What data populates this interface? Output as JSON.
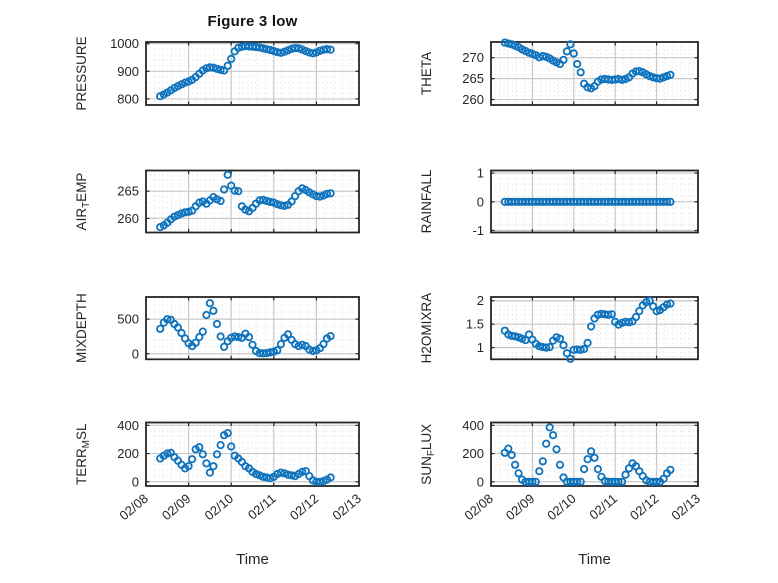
{
  "figure": {
    "title": "Figure 3 low",
    "xlabel": "Time",
    "background": "#ffffff",
    "marker_color": "#0e72bd",
    "axis_color": "#262626",
    "grid_color": "#c9c9c9",
    "minor_grid_color": "#dedede",
    "tick_label_color": "#262626"
  },
  "x_axis": {
    "tick_values": [
      0,
      1,
      2,
      3,
      4,
      5
    ],
    "tick_labels": [
      "02/08",
      "02/09",
      "02/10",
      "02/11",
      "02/12",
      "02/13"
    ]
  },
  "x_days": [
    0.333,
    0.417,
    0.5,
    0.583,
    0.667,
    0.75,
    0.833,
    0.917,
    1.0,
    1.083,
    1.167,
    1.25,
    1.333,
    1.417,
    1.5,
    1.583,
    1.667,
    1.75,
    1.833,
    1.917,
    2.0,
    2.083,
    2.167,
    2.25,
    2.333,
    2.417,
    2.5,
    2.583,
    2.667,
    2.75,
    2.833,
    2.917,
    3.0,
    3.083,
    3.167,
    3.25,
    3.333,
    3.417,
    3.5,
    3.583,
    3.667,
    3.75,
    3.833,
    3.917,
    4.0,
    4.083,
    4.167,
    4.25,
    4.333
  ],
  "chart_data": [
    {
      "type": "scatter",
      "name": "PRESSURE",
      "ylabel": "PRESSURE",
      "ylabel_parts": [
        {
          "t": "PRESSURE"
        }
      ],
      "row": 0,
      "col": 0,
      "xlim": [
        0,
        5
      ],
      "ylim": [
        778,
        1006
      ],
      "yticks": {
        "values": [
          800,
          900,
          1000
        ],
        "labels": [
          "800",
          "900",
          "1000"
        ]
      },
      "values": [
        810,
        816,
        823,
        831,
        839,
        846,
        853,
        859,
        863,
        869,
        879,
        891,
        903,
        911,
        914,
        913,
        909,
        905,
        903,
        920,
        945,
        972,
        985,
        989,
        991,
        990,
        989,
        988,
        986,
        983,
        980,
        977,
        973,
        969,
        967,
        971,
        976,
        981,
        984,
        983,
        979,
        973,
        968,
        965,
        968,
        974,
        978,
        980,
        978
      ]
    },
    {
      "type": "scatter",
      "name": "THETA",
      "ylabel": "THETA",
      "ylabel_parts": [
        {
          "t": "THETA"
        }
      ],
      "row": 0,
      "col": 1,
      "xlim": [
        0,
        5
      ],
      "ylim": [
        258.7,
        273.75
      ],
      "yticks": {
        "values": [
          260,
          265,
          270
        ],
        "labels": [
          "260",
          "265",
          "270"
        ]
      },
      "values": [
        273.6,
        273.4,
        273.2,
        272.9,
        272.5,
        272.0,
        271.6,
        271.2,
        270.9,
        270.6,
        270.1,
        270.4,
        270.2,
        269.8,
        269.3,
        268.9,
        268.5,
        269.5,
        271.5,
        273.2,
        271.0,
        268.5,
        266.5,
        263.8,
        262.9,
        262.7,
        263.2,
        264.3,
        264.8,
        264.9,
        264.8,
        264.7,
        264.8,
        264.9,
        264.7,
        264.9,
        265.3,
        266.2,
        266.7,
        266.8,
        266.5,
        266.0,
        265.6,
        265.3,
        265.1,
        265.0,
        265.3,
        265.6,
        265.9
      ]
    },
    {
      "type": "scatter",
      "name": "AIR_TEMP",
      "ylabel": "AIR_TEMP",
      "ylabel_parts": [
        {
          "t": "AIR"
        },
        {
          "t": "T",
          "sub": true
        },
        {
          "t": "EMP"
        }
      ],
      "row": 1,
      "col": 0,
      "xlim": [
        0,
        5
      ],
      "ylim": [
        257.4,
        268.8
      ],
      "yticks": {
        "values": [
          260,
          265
        ],
        "labels": [
          "260",
          "265"
        ]
      },
      "values": [
        258.4,
        258.7,
        259.2,
        259.8,
        260.3,
        260.6,
        260.9,
        261.1,
        261.2,
        261.4,
        262.2,
        262.9,
        263.1,
        262.7,
        263.3,
        263.9,
        263.5,
        263.2,
        265.3,
        268.0,
        266.0,
        265.1,
        265.0,
        262.2,
        261.6,
        261.3,
        261.9,
        262.7,
        263.3,
        263.4,
        263.2,
        263.0,
        262.9,
        262.6,
        262.4,
        262.3,
        262.5,
        263.1,
        264.1,
        265.0,
        265.5,
        265.2,
        264.8,
        264.4,
        264.1,
        264.0,
        264.2,
        264.5,
        264.6
      ]
    },
    {
      "type": "scatter",
      "name": "RAINFALL",
      "ylabel": "RAINFALL",
      "ylabel_parts": [
        {
          "t": "RAINFALL"
        }
      ],
      "row": 1,
      "col": 1,
      "xlim": [
        0,
        5
      ],
      "ylim": [
        -1.07,
        1.09
      ],
      "yticks": {
        "values": [
          -1,
          0,
          1
        ],
        "labels": [
          "-1",
          "0",
          "1"
        ]
      },
      "values": [
        0,
        0,
        0,
        0,
        0,
        0,
        0,
        0,
        0,
        0,
        0,
        0,
        0,
        0,
        0,
        0,
        0,
        0,
        0,
        0,
        0,
        0,
        0,
        0,
        0,
        0,
        0,
        0,
        0,
        0,
        0,
        0,
        0,
        0,
        0,
        0,
        0,
        0,
        0,
        0,
        0,
        0,
        0,
        0,
        0,
        0,
        0,
        0,
        0
      ]
    },
    {
      "type": "scatter",
      "name": "MIXDEPTH",
      "ylabel": "MIXDEPTH",
      "ylabel_parts": [
        {
          "t": "MIXDEPTH"
        }
      ],
      "row": 2,
      "col": 0,
      "xlim": [
        0,
        5
      ],
      "ylim": [
        -80,
        820
      ],
      "yticks": {
        "values": [
          0,
          500
        ],
        "labels": [
          "0",
          "500"
        ]
      },
      "values": [
        360,
        450,
        500,
        490,
        430,
        380,
        300,
        220,
        150,
        110,
        160,
        240,
        320,
        560,
        730,
        620,
        430,
        250,
        100,
        180,
        230,
        250,
        240,
        230,
        290,
        240,
        130,
        40,
        10,
        5,
        10,
        20,
        30,
        50,
        140,
        230,
        280,
        200,
        140,
        110,
        130,
        110,
        60,
        40,
        50,
        80,
        140,
        220,
        255
      ]
    },
    {
      "type": "scatter",
      "name": "H2OMIXRA",
      "ylabel": "H2OMIXRA",
      "ylabel_parts": [
        {
          "t": "H2OMIXRA"
        }
      ],
      "row": 2,
      "col": 1,
      "xlim": [
        0,
        5
      ],
      "ylim": [
        0.75,
        2.08
      ],
      "yticks": {
        "values": [
          1,
          1.5,
          2
        ],
        "labels": [
          "1",
          "1.5",
          "2"
        ]
      },
      "values": [
        1.36,
        1.28,
        1.25,
        1.24,
        1.22,
        1.19,
        1.16,
        1.28,
        1.17,
        1.08,
        1.03,
        1.01,
        1.0,
        1.01,
        1.15,
        1.22,
        1.19,
        1.05,
        0.88,
        0.76,
        0.95,
        0.96,
        0.95,
        0.97,
        1.1,
        1.45,
        1.62,
        1.7,
        1.72,
        1.71,
        1.7,
        1.71,
        1.55,
        1.49,
        1.53,
        1.55,
        1.54,
        1.56,
        1.65,
        1.78,
        1.9,
        1.97,
        2.0,
        1.88,
        1.78,
        1.8,
        1.86,
        1.92,
        1.94
      ]
    },
    {
      "type": "scatter",
      "name": "TERR_MSL",
      "ylabel": "TERR_MSL",
      "ylabel_parts": [
        {
          "t": "TERR"
        },
        {
          "t": "M",
          "sub": true
        },
        {
          "t": "SL"
        }
      ],
      "row": 3,
      "col": 0,
      "xlim": [
        0,
        5
      ],
      "ylim": [
        -30,
        420
      ],
      "yticks": {
        "values": [
          0,
          200,
          400
        ],
        "labels": [
          "0",
          "200",
          "400"
        ]
      },
      "values": [
        165,
        185,
        200,
        205,
        175,
        150,
        120,
        95,
        110,
        160,
        230,
        245,
        195,
        130,
        65,
        110,
        195,
        260,
        330,
        345,
        250,
        185,
        165,
        140,
        110,
        95,
        70,
        55,
        45,
        35,
        30,
        25,
        35,
        55,
        65,
        60,
        50,
        45,
        40,
        55,
        70,
        75,
        40,
        10,
        0,
        0,
        5,
        15,
        30
      ]
    },
    {
      "type": "scatter",
      "name": "SUN_FLUX",
      "ylabel": "SUN_FLUX",
      "ylabel_parts": [
        {
          "t": "SUN"
        },
        {
          "t": "F",
          "sub": true
        },
        {
          "t": "LUX"
        }
      ],
      "row": 3,
      "col": 1,
      "xlim": [
        0,
        5
      ],
      "ylim": [
        -30,
        420
      ],
      "yticks": {
        "values": [
          0,
          200,
          400
        ],
        "labels": [
          "0",
          "200",
          "400"
        ]
      },
      "values": [
        205,
        235,
        190,
        120,
        60,
        15,
        0,
        0,
        0,
        0,
        75,
        145,
        270,
        385,
        330,
        230,
        120,
        30,
        0,
        0,
        0,
        0,
        0,
        90,
        160,
        215,
        170,
        90,
        35,
        5,
        0,
        0,
        0,
        0,
        0,
        50,
        95,
        130,
        110,
        75,
        40,
        10,
        0,
        0,
        0,
        0,
        20,
        60,
        85
      ]
    }
  ]
}
